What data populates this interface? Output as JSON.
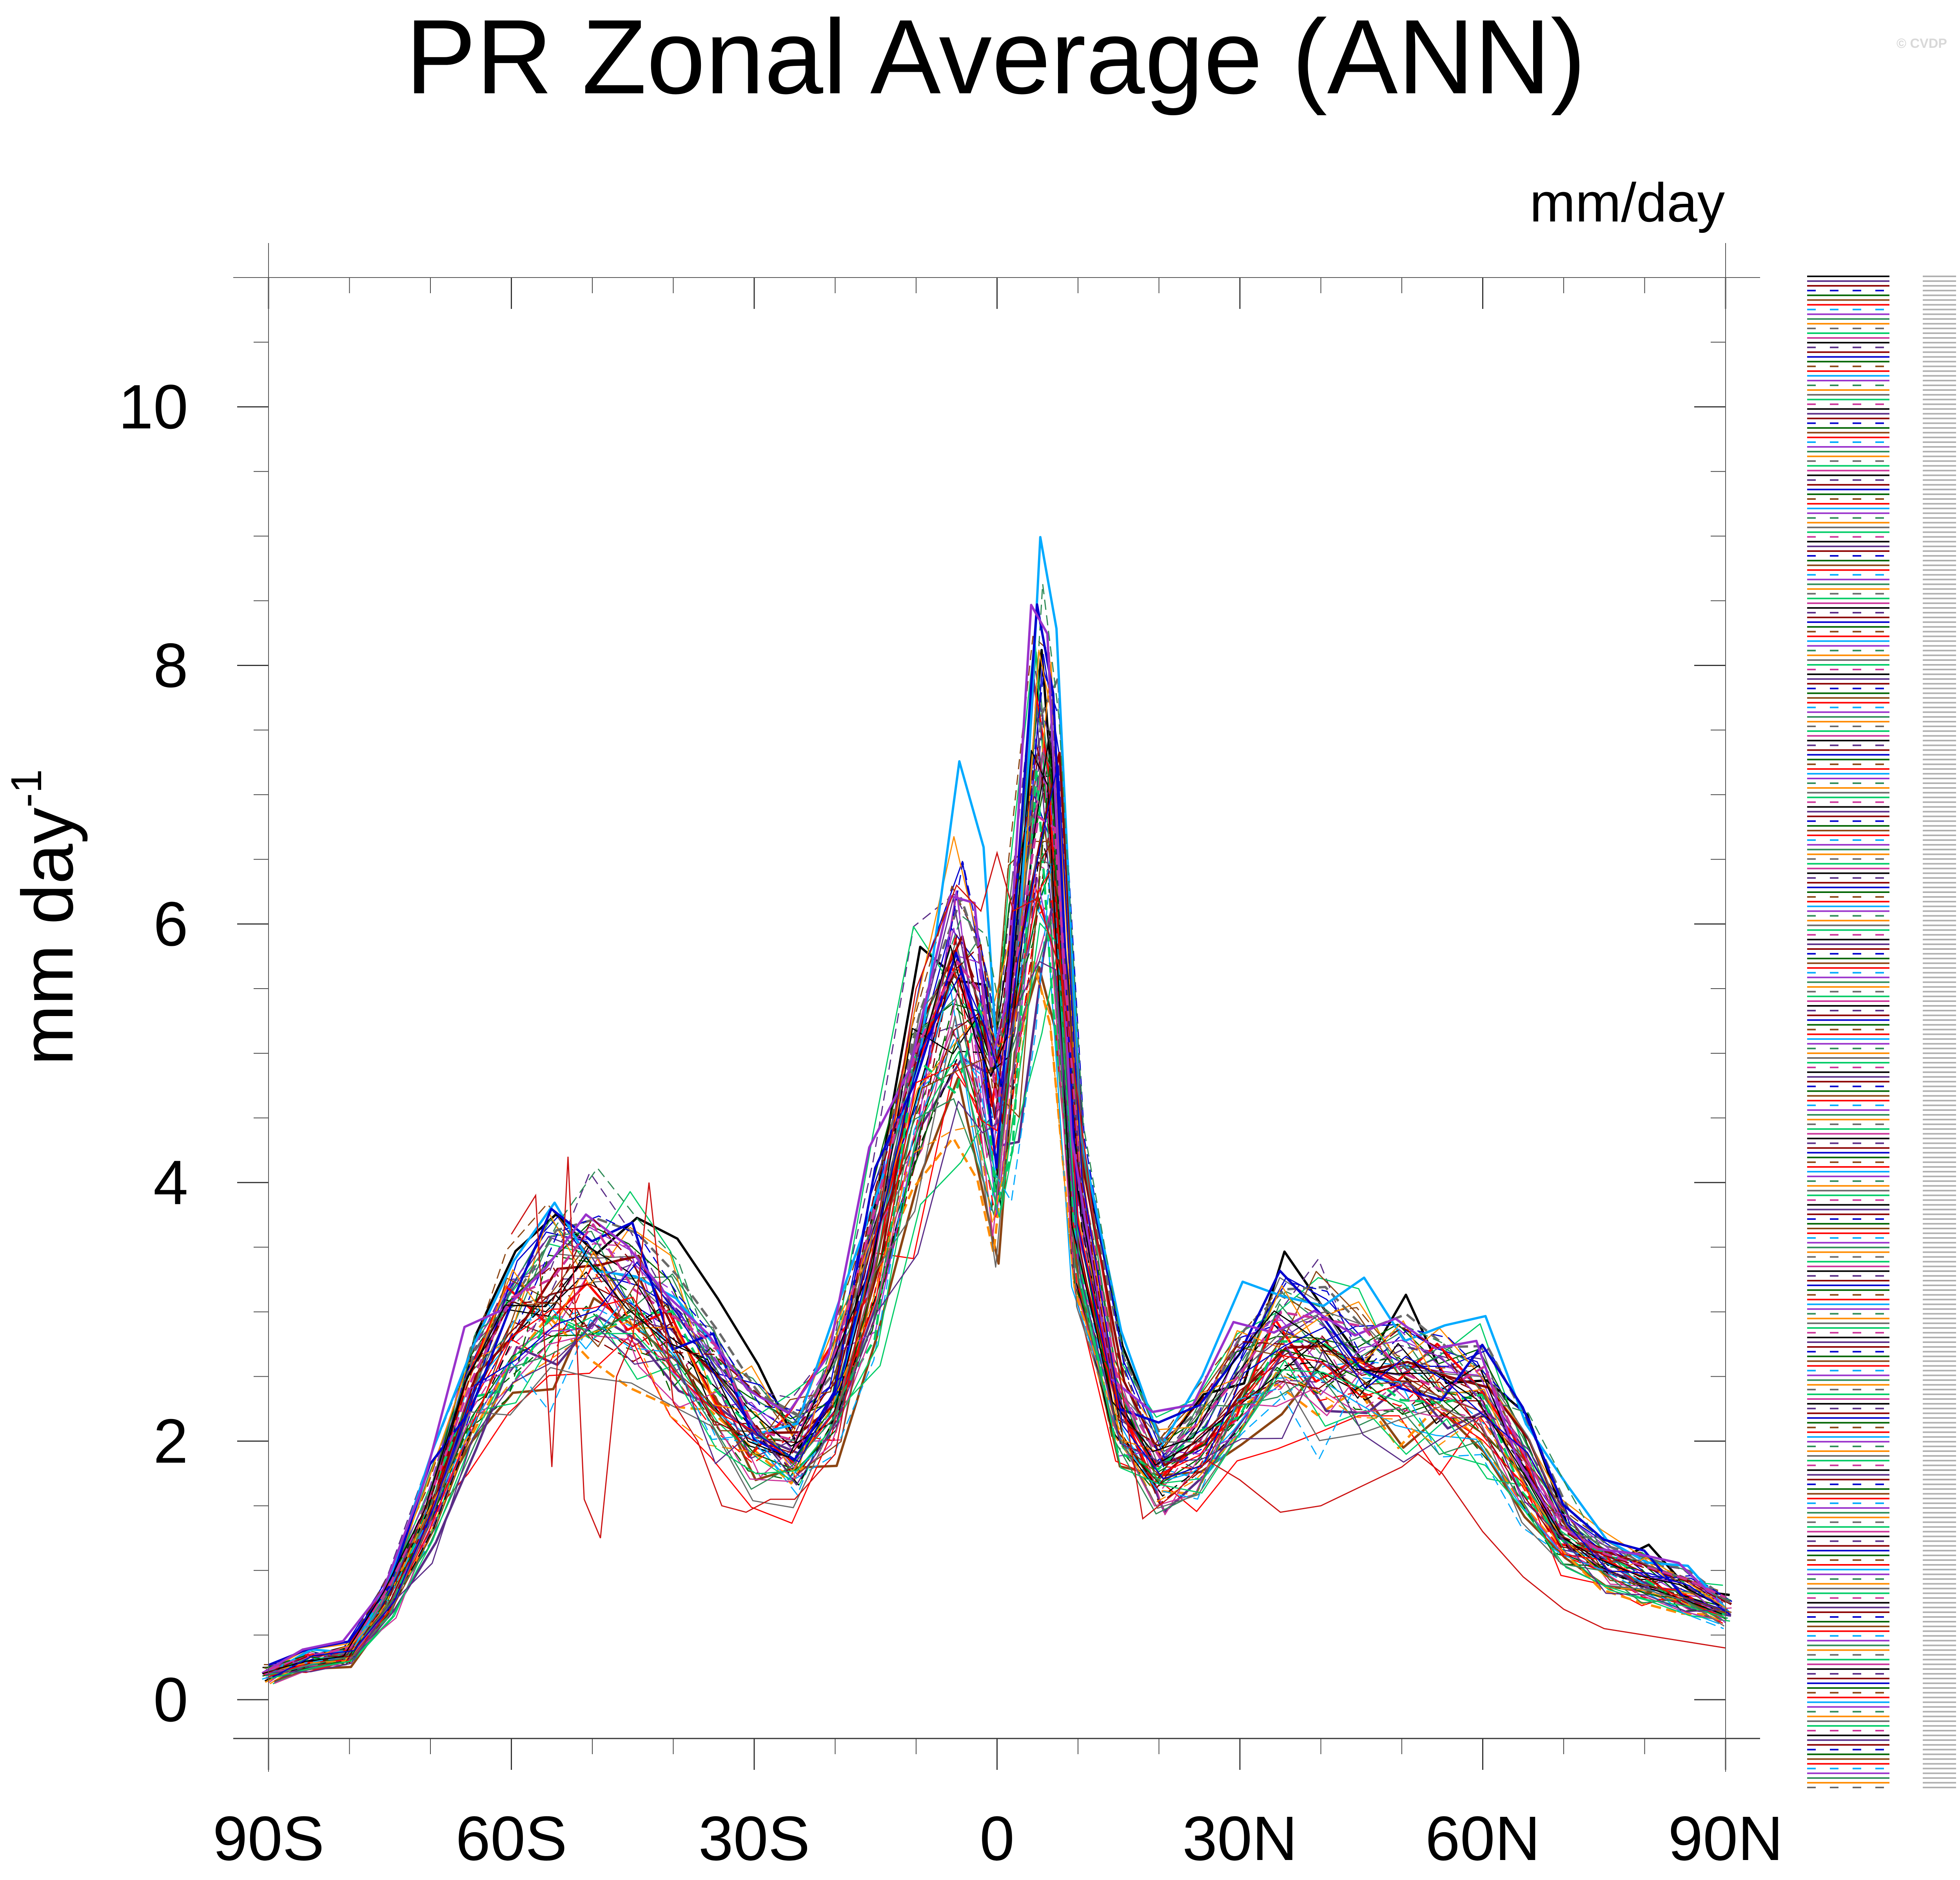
{
  "watermark": "© CVDP",
  "chart_data": {
    "type": "line",
    "title": "PR Zonal Average (ANN)",
    "units_label": "mm/day",
    "ylabel": "mm day",
    "ylabel_superscript": "-1",
    "xlim": [
      -90,
      90
    ],
    "ylim": [
      -0.3,
      11
    ],
    "x_ticks": [
      {
        "value": -90,
        "label": "90S"
      },
      {
        "value": -60,
        "label": "60S"
      },
      {
        "value": -30,
        "label": "30S"
      },
      {
        "value": 0,
        "label": "0"
      },
      {
        "value": 30,
        "label": "30N"
      },
      {
        "value": 60,
        "label": "60N"
      },
      {
        "value": 90,
        "label": "90N"
      }
    ],
    "y_ticks": [
      {
        "value": 0,
        "label": "0"
      },
      {
        "value": 2,
        "label": "2"
      },
      {
        "value": 4,
        "label": "4"
      },
      {
        "value": 6,
        "label": "6"
      },
      {
        "value": 8,
        "label": "8"
      },
      {
        "value": 10,
        "label": "10"
      }
    ],
    "x_minor_step": 10,
    "y_minor_step": 0.5,
    "legend_position": "right",
    "ensemble_count": 60,
    "ensemble_mean": {
      "x": [
        -90,
        -85,
        -80,
        -75,
        -70,
        -65,
        -60,
        -55,
        -50,
        -45,
        -40,
        -35,
        -30,
        -25,
        -20,
        -15,
        -10,
        -5,
        -2,
        0,
        2,
        5,
        7,
        10,
        15,
        20,
        25,
        30,
        35,
        40,
        45,
        50,
        55,
        60,
        65,
        70,
        75,
        80,
        85,
        90
      ],
      "y": [
        0.2,
        0.3,
        0.35,
        0.8,
        1.5,
        2.4,
        2.9,
        3.2,
        3.3,
        3.15,
        2.85,
        2.45,
        2.1,
        1.95,
        2.4,
        3.5,
        4.8,
        5.6,
        5.1,
        4.5,
        5.4,
        7.0,
        6.8,
        3.8,
        2.3,
        1.8,
        2.0,
        2.5,
        2.8,
        2.75,
        2.6,
        2.55,
        2.45,
        2.35,
        1.85,
        1.3,
        1.1,
        0.95,
        0.85,
        0.7
      ]
    },
    "outlier_series": {
      "x": [
        -60,
        -57,
        -55,
        -53,
        -51,
        -49,
        -47,
        -45,
        -43,
        -40,
        -37,
        -34,
        -31,
        -28,
        -25,
        -20,
        -15,
        -10,
        -5,
        -2,
        0,
        2,
        5,
        8,
        12,
        18,
        22,
        26,
        30,
        35,
        40,
        45,
        50,
        52,
        55,
        60,
        65,
        70,
        75,
        80,
        85,
        90
      ],
      "y": [
        3.6,
        3.9,
        1.8,
        4.2,
        1.55,
        1.25,
        2.5,
        2.8,
        4.0,
        2.3,
        2.0,
        1.5,
        1.45,
        1.55,
        1.55,
        1.9,
        3.6,
        5.5,
        6.3,
        6.1,
        6.55,
        6.1,
        6.2,
        5.6,
        3.7,
        1.4,
        1.6,
        1.85,
        1.7,
        1.45,
        1.5,
        1.65,
        1.8,
        1.9,
        1.75,
        1.3,
        0.95,
        0.7,
        0.55,
        0.5,
        0.45,
        0.4
      ]
    },
    "legend": {
      "line_count": 320,
      "colors": [
        "#000000",
        "#5a2d87",
        "#8b0000",
        "#0000cd",
        "#006400",
        "#8b4513",
        "#ff0000",
        "#00aaff",
        "#9932cc",
        "#2e8b57",
        "#ff8c00",
        "#696969",
        "#00cc66",
        "#cc3399"
      ]
    }
  }
}
